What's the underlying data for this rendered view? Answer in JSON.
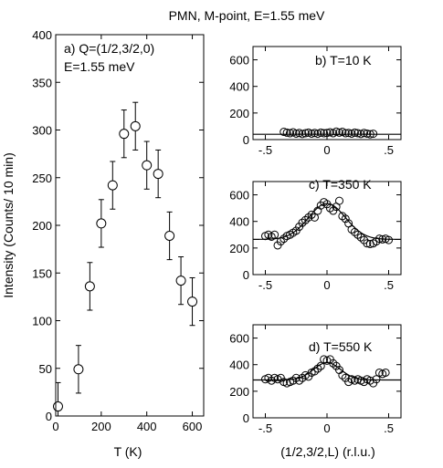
{
  "suptitle": "PMN, M-point, E=1.55 meV",
  "chart_data": [
    {
      "id": "a",
      "type": "scatter",
      "annotation_lines": [
        "a) Q=(1/2,3/2,0)",
        "E=1.55 meV"
      ],
      "xlabel": "T (K)",
      "ylabel": "Intensity (Counts/ 10 min)",
      "xlim": [
        0,
        650
      ],
      "ylim": [
        0,
        400
      ],
      "xticks": [
        0,
        200,
        400,
        600
      ],
      "yticks": [
        0,
        50,
        100,
        150,
        200,
        250,
        300,
        350,
        400
      ],
      "points": [
        {
          "x": 10,
          "y": 10,
          "err": 25
        },
        {
          "x": 100,
          "y": 49,
          "err": 25
        },
        {
          "x": 150,
          "y": 136,
          "err": 25
        },
        {
          "x": 200,
          "y": 202,
          "err": 25
        },
        {
          "x": 250,
          "y": 242,
          "err": 25
        },
        {
          "x": 300,
          "y": 296,
          "err": 25
        },
        {
          "x": 350,
          "y": 304,
          "err": 25
        },
        {
          "x": 400,
          "y": 263,
          "err": 25
        },
        {
          "x": 450,
          "y": 254,
          "err": 25
        },
        {
          "x": 500,
          "y": 189,
          "err": 25
        },
        {
          "x": 550,
          "y": 142,
          "err": 25
        },
        {
          "x": 600,
          "y": 120,
          "err": 25
        }
      ]
    },
    {
      "id": "b",
      "type": "scatter",
      "annotation_lines": [
        "b) T=10 K"
      ],
      "xlim": [
        -0.6,
        0.6
      ],
      "ylim": [
        0,
        700
      ],
      "xticks": [
        -0.5,
        0,
        0.5
      ],
      "yticks": [
        0,
        200,
        400,
        600
      ],
      "fit": {
        "type": "flat",
        "baseline": 40
      },
      "points": [
        {
          "x": -0.35,
          "y": 58
        },
        {
          "x": -0.325,
          "y": 52
        },
        {
          "x": -0.3,
          "y": 48
        },
        {
          "x": -0.275,
          "y": 55
        },
        {
          "x": -0.25,
          "y": 45
        },
        {
          "x": -0.225,
          "y": 50
        },
        {
          "x": -0.2,
          "y": 42
        },
        {
          "x": -0.175,
          "y": 48
        },
        {
          "x": -0.15,
          "y": 52
        },
        {
          "x": -0.125,
          "y": 45
        },
        {
          "x": -0.1,
          "y": 50
        },
        {
          "x": -0.075,
          "y": 44
        },
        {
          "x": -0.05,
          "y": 52
        },
        {
          "x": -0.025,
          "y": 48
        },
        {
          "x": 0.0,
          "y": 50
        },
        {
          "x": 0.025,
          "y": 55
        },
        {
          "x": 0.05,
          "y": 48
        },
        {
          "x": 0.075,
          "y": 60
        },
        {
          "x": 0.1,
          "y": 52
        },
        {
          "x": 0.125,
          "y": 58
        },
        {
          "x": 0.15,
          "y": 48
        },
        {
          "x": 0.175,
          "y": 50
        },
        {
          "x": 0.2,
          "y": 45
        },
        {
          "x": 0.225,
          "y": 52
        },
        {
          "x": 0.25,
          "y": 48
        },
        {
          "x": 0.275,
          "y": 42
        },
        {
          "x": 0.3,
          "y": 50
        },
        {
          "x": 0.325,
          "y": 45
        },
        {
          "x": 0.35,
          "y": 40
        },
        {
          "x": 0.375,
          "y": 44
        }
      ]
    },
    {
      "id": "c",
      "type": "scatter",
      "annotation_lines": [
        "c) T=350 K"
      ],
      "xlim": [
        -0.6,
        0.6
      ],
      "ylim": [
        0,
        700
      ],
      "xticks": [
        -0.5,
        0,
        0.5
      ],
      "yticks": [
        0,
        200,
        400,
        600
      ],
      "fit": {
        "type": "peak",
        "baseline": 265,
        "amplitude": 270,
        "center": 0.0,
        "width": 0.15
      },
      "points": [
        {
          "x": -0.5,
          "y": 290
        },
        {
          "x": -0.475,
          "y": 300
        },
        {
          "x": -0.45,
          "y": 285
        },
        {
          "x": -0.425,
          "y": 300
        },
        {
          "x": -0.4,
          "y": 220
        },
        {
          "x": -0.375,
          "y": 250
        },
        {
          "x": -0.35,
          "y": 270
        },
        {
          "x": -0.325,
          "y": 290
        },
        {
          "x": -0.3,
          "y": 300
        },
        {
          "x": -0.275,
          "y": 315
        },
        {
          "x": -0.25,
          "y": 330
        },
        {
          "x": -0.225,
          "y": 360
        },
        {
          "x": -0.2,
          "y": 390
        },
        {
          "x": -0.175,
          "y": 410
        },
        {
          "x": -0.15,
          "y": 430
        },
        {
          "x": -0.125,
          "y": 450
        },
        {
          "x": -0.1,
          "y": 430
        },
        {
          "x": -0.075,
          "y": 480
        },
        {
          "x": -0.05,
          "y": 520
        },
        {
          "x": -0.025,
          "y": 545
        },
        {
          "x": 0.0,
          "y": 530
        },
        {
          "x": 0.025,
          "y": 500
        },
        {
          "x": 0.05,
          "y": 480
        },
        {
          "x": 0.075,
          "y": 510
        },
        {
          "x": 0.1,
          "y": 555
        },
        {
          "x": 0.125,
          "y": 440
        },
        {
          "x": 0.15,
          "y": 420
        },
        {
          "x": 0.175,
          "y": 385
        },
        {
          "x": 0.2,
          "y": 340
        },
        {
          "x": 0.225,
          "y": 320
        },
        {
          "x": 0.25,
          "y": 300
        },
        {
          "x": 0.275,
          "y": 280
        },
        {
          "x": 0.3,
          "y": 260
        },
        {
          "x": 0.325,
          "y": 235
        },
        {
          "x": 0.35,
          "y": 230
        },
        {
          "x": 0.375,
          "y": 235
        },
        {
          "x": 0.4,
          "y": 250
        },
        {
          "x": 0.425,
          "y": 270
        },
        {
          "x": 0.45,
          "y": 265
        },
        {
          "x": 0.475,
          "y": 270
        },
        {
          "x": 0.5,
          "y": 260
        }
      ]
    },
    {
      "id": "d",
      "type": "scatter",
      "annotation_lines": [
        "d) T=550 K"
      ],
      "xlim": [
        -0.6,
        0.6
      ],
      "ylim": [
        0,
        700
      ],
      "xticks": [
        -0.5,
        0,
        0.5
      ],
      "yticks": [
        0,
        200,
        400,
        600
      ],
      "fit": {
        "type": "peak",
        "baseline": 285,
        "amplitude": 130,
        "center": 0.0,
        "width": 0.11
      },
      "points": [
        {
          "x": -0.5,
          "y": 290
        },
        {
          "x": -0.475,
          "y": 300
        },
        {
          "x": -0.45,
          "y": 280
        },
        {
          "x": -0.425,
          "y": 300
        },
        {
          "x": -0.4,
          "y": 290
        },
        {
          "x": -0.375,
          "y": 300
        },
        {
          "x": -0.35,
          "y": 270
        },
        {
          "x": -0.325,
          "y": 260
        },
        {
          "x": -0.3,
          "y": 270
        },
        {
          "x": -0.275,
          "y": 280
        },
        {
          "x": -0.25,
          "y": 300
        },
        {
          "x": -0.225,
          "y": 280
        },
        {
          "x": -0.2,
          "y": 300
        },
        {
          "x": -0.175,
          "y": 320
        },
        {
          "x": -0.15,
          "y": 310
        },
        {
          "x": -0.125,
          "y": 340
        },
        {
          "x": -0.1,
          "y": 350
        },
        {
          "x": -0.075,
          "y": 370
        },
        {
          "x": -0.05,
          "y": 390
        },
        {
          "x": -0.025,
          "y": 440
        },
        {
          "x": 0.0,
          "y": 430
        },
        {
          "x": 0.025,
          "y": 440
        },
        {
          "x": 0.05,
          "y": 410
        },
        {
          "x": 0.075,
          "y": 390
        },
        {
          "x": 0.1,
          "y": 360
        },
        {
          "x": 0.125,
          "y": 320
        },
        {
          "x": 0.15,
          "y": 300
        },
        {
          "x": 0.175,
          "y": 270
        },
        {
          "x": 0.2,
          "y": 290
        },
        {
          "x": 0.225,
          "y": 280
        },
        {
          "x": 0.25,
          "y": 290
        },
        {
          "x": 0.275,
          "y": 280
        },
        {
          "x": 0.3,
          "y": 270
        },
        {
          "x": 0.325,
          "y": 290
        },
        {
          "x": 0.35,
          "y": 280
        },
        {
          "x": 0.375,
          "y": 260
        },
        {
          "x": 0.4,
          "y": 290
        },
        {
          "x": 0.425,
          "y": 340
        },
        {
          "x": 0.45,
          "y": 330
        },
        {
          "x": 0.475,
          "y": 340
        }
      ]
    }
  ],
  "shared_xlabel_right": "(1/2,3/2,L) (r.l.u.)"
}
